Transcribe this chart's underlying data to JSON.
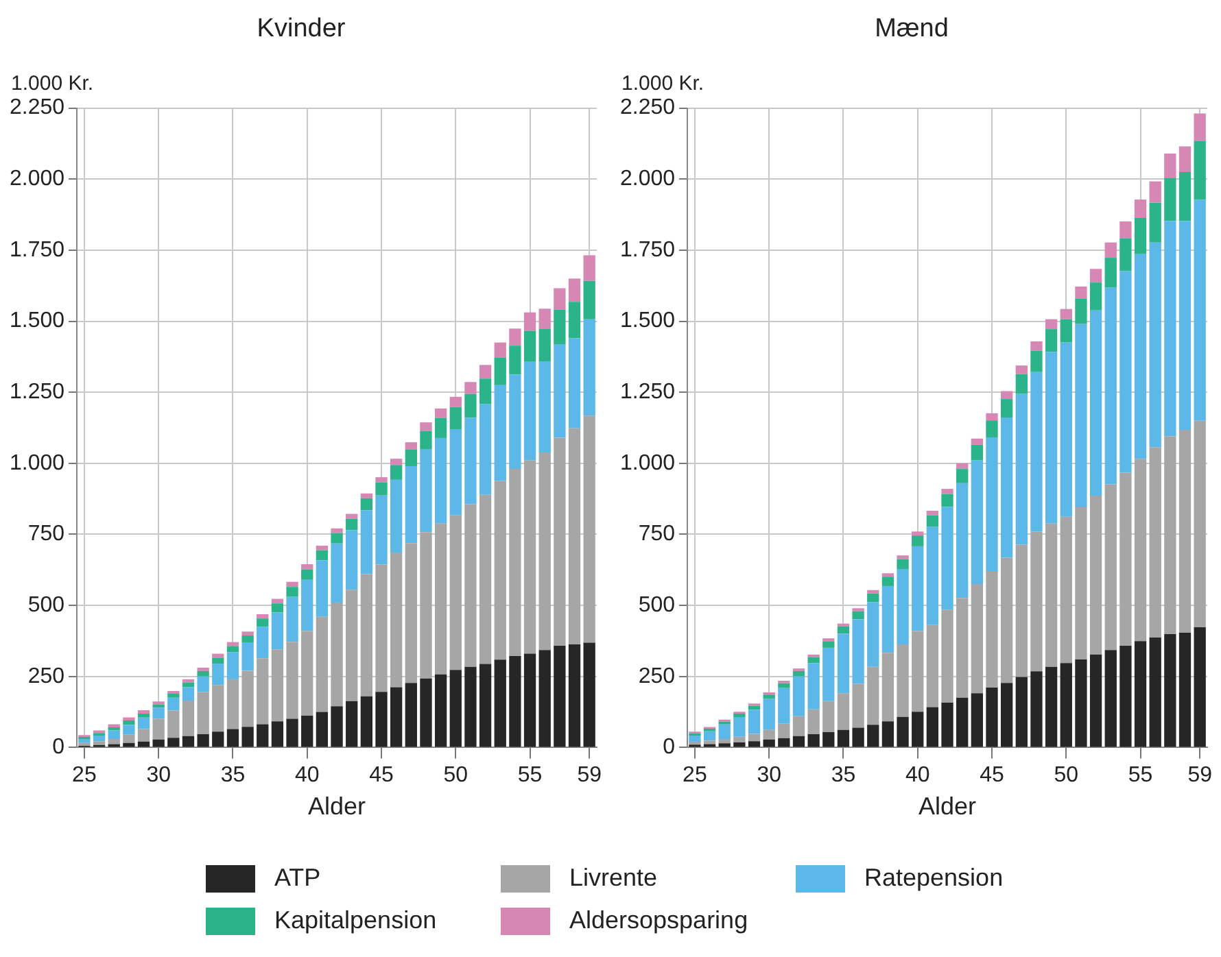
{
  "chart_data": [
    {
      "type": "bar",
      "title": "Kvinder",
      "xlabel": "Alder",
      "ylabel": "1.000 Kr.",
      "stacked": true,
      "grid": true,
      "legend": "bottom",
      "categories": [
        "25",
        null,
        null,
        null,
        null,
        "30",
        null,
        null,
        null,
        null,
        "35",
        null,
        null,
        null,
        null,
        "40",
        null,
        null,
        null,
        null,
        "45",
        null,
        null,
        null,
        null,
        "50",
        null,
        null,
        null,
        null,
        "55",
        null,
        null,
        null,
        "59"
      ],
      "ylim": [
        0,
        2250
      ],
      "yticks": [
        0,
        250,
        500,
        750,
        {
          "value": 1000,
          "label": "1.000"
        },
        {
          "value": 1250,
          "label": "1.250"
        },
        {
          "value": 1500,
          "label": "1.500"
        },
        {
          "value": 1750,
          "label": "1.750"
        },
        {
          "value": 2000,
          "label": "2.000"
        },
        {
          "value": 2250,
          "label": "2.250"
        }
      ],
      "series": [
        {
          "name": "ATP",
          "color": "#262626",
          "values": [
            6,
            9,
            12,
            16,
            21,
            28,
            34,
            40,
            47,
            56,
            65,
            73,
            82,
            92,
            101,
            112,
            125,
            145,
            163,
            180,
            196,
            212,
            227,
            243,
            257,
            273,
            284,
            294,
            309,
            322,
            330,
            343,
            358,
            363,
            369
          ]
        },
        {
          "name": "Livrente",
          "color": "#a6a6a6",
          "values": [
            10,
            13,
            18,
            29,
            44,
            73,
            96,
            125,
            148,
            164,
            175,
            197,
            232,
            253,
            271,
            298,
            335,
            365,
            392,
            430,
            448,
            474,
            492,
            515,
            531,
            544,
            572,
            595,
            629,
            658,
            681,
            695,
            732,
            760,
            799
          ]
        },
        {
          "name": "Ratepension",
          "color": "#5bb8e8",
          "values": [
            14,
            20,
            30,
            35,
            40,
            39,
            45,
            47,
            55,
            75,
            95,
            100,
            111,
            130,
            158,
            180,
            199,
            208,
            210,
            225,
            243,
            256,
            271,
            292,
            301,
            303,
            304,
            319,
            337,
            332,
            346,
            321,
            329,
            317,
            339
          ]
        },
        {
          "name": "Kapitalpension",
          "color": "#2bb38a",
          "values": [
            7,
            9,
            11,
            15,
            14,
            12,
            14,
            16,
            19,
            21,
            22,
            24,
            29,
            32,
            35,
            37,
            35,
            37,
            40,
            42,
            46,
            52,
            58,
            64,
            71,
            78,
            84,
            90,
            96,
            102,
            109,
            115,
            121,
            128,
            135
          ]
        },
        {
          "name": "Aldersopsparing",
          "color": "#d687b4",
          "values": [
            7,
            9,
            11,
            11,
            12,
            10,
            10,
            12,
            12,
            14,
            14,
            14,
            15,
            16,
            18,
            18,
            16,
            16,
            17,
            17,
            18,
            22,
            26,
            30,
            33,
            36,
            42,
            48,
            54,
            60,
            65,
            70,
            76,
            82,
            90
          ]
        }
      ]
    },
    {
      "type": "bar",
      "title": "Mænd",
      "xlabel": "Alder",
      "ylabel": "1.000 Kr.",
      "stacked": true,
      "grid": true,
      "categories": [
        "25",
        null,
        null,
        null,
        null,
        "30",
        null,
        null,
        null,
        null,
        "35",
        null,
        null,
        null,
        null,
        "40",
        null,
        null,
        null,
        null,
        "45",
        null,
        null,
        null,
        null,
        "50",
        null,
        null,
        null,
        null,
        "55",
        null,
        null,
        null,
        "59"
      ],
      "ylim": [
        0,
        2250
      ],
      "yticks": [
        0,
        250,
        500,
        750,
        {
          "value": 1000,
          "label": "1.000"
        },
        {
          "value": 1250,
          "label": "1.250"
        },
        {
          "value": 1500,
          "label": "1.500"
        },
        {
          "value": 1750,
          "label": "1.750"
        },
        {
          "value": 2000,
          "label": "2.000"
        },
        {
          "value": 2250,
          "label": "2.250"
        }
      ],
      "series": [
        {
          "color": "#262626",
          "values": [
            10,
            12,
            15,
            18,
            22,
            28,
            33,
            40,
            47,
            54,
            62,
            70,
            80,
            92,
            108,
            126,
            142,
            158,
            175,
            191,
            211,
            227,
            248,
            268,
            284,
            297,
            310,
            327,
            343,
            358,
            374,
            387,
            399,
            404,
            423
          ]
        },
        {
          "color": "#a6a6a6",
          "values": [
            10,
            12,
            15,
            20,
            26,
            34,
            52,
            70,
            87,
            109,
            129,
            154,
            204,
            241,
            255,
            284,
            289,
            327,
            351,
            384,
            410,
            441,
            466,
            492,
            504,
            515,
            535,
            559,
            583,
            609,
            642,
            670,
            696,
            714,
            727
          ]
        },
        {
          "color": "#5bb8e8",
          "values": [
            22,
            33,
            51,
            69,
            85,
            109,
            124,
            140,
            163,
            188,
            210,
            227,
            228,
            235,
            265,
            298,
            345,
            362,
            404,
            435,
            470,
            493,
            530,
            561,
            604,
            613,
            645,
            652,
            692,
            709,
            720,
            720,
            758,
            735,
            777
          ]
        },
        {
          "color": "#2bb38a",
          "values": [
            8,
            9,
            10,
            12,
            14,
            15,
            17,
            19,
            21,
            23,
            25,
            28,
            30,
            33,
            35,
            38,
            41,
            45,
            50,
            55,
            60,
            65,
            70,
            75,
            80,
            82,
            90,
            98,
            105,
            115,
            127,
            140,
            152,
            172,
            206
          ]
        },
        {
          "color": "#d687b4",
          "values": [
            6,
            6,
            7,
            7,
            8,
            8,
            9,
            9,
            9,
            10,
            10,
            11,
            12,
            12,
            13,
            14,
            16,
            18,
            20,
            22,
            25,
            28,
            30,
            33,
            35,
            36,
            42,
            48,
            54,
            60,
            65,
            75,
            85,
            90,
            98
          ]
        }
      ]
    }
  ]
}
